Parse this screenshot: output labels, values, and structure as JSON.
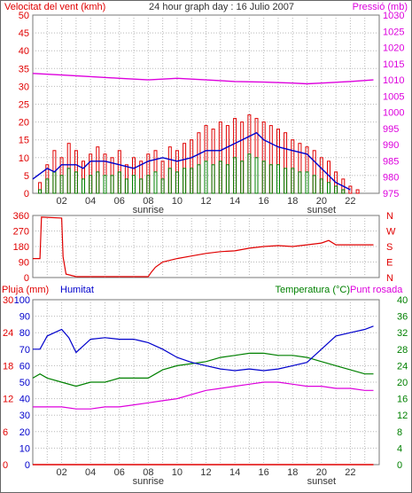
{
  "header": {
    "left_title": "Velocitat del vent (kmh)",
    "center_title": "24 hour graph day : 16 Julio 2007",
    "right_title": "Pressió (mb)"
  },
  "colors": {
    "red": "#e00000",
    "green": "#008000",
    "blue": "#0000cc",
    "magenta": "#dd00dd",
    "grid": "#b8b8b8",
    "text_dark": "#333333"
  },
  "x_axis": {
    "ticks": [
      "02",
      "04",
      "06",
      "08",
      "10",
      "12",
      "14",
      "16",
      "18",
      "20",
      "22"
    ],
    "sunrise_label": "sunrise",
    "sunset_label": "sunset",
    "sunrise_hour": 8,
    "sunset_hour": 20
  },
  "chart_data": [
    {
      "type": "bar",
      "title": "",
      "left_label": "Velocitat del vent (kmh)",
      "right_label": "Pressió (mb)",
      "left_ticks": [
        "0",
        "5",
        "10",
        "15",
        "20",
        "25",
        "30",
        "35",
        "40",
        "45",
        "50"
      ],
      "right_ticks": [
        "975",
        "980",
        "985",
        "990",
        "995",
        "1000",
        "1005",
        "1010",
        "1015",
        "1020",
        "1025",
        "1030"
      ],
      "ylim_left": [
        0,
        50
      ],
      "ylim_right": [
        975,
        1030
      ],
      "xlim": [
        0,
        24
      ],
      "series": [
        {
          "role": "gust",
          "color": "#e00000",
          "x": [
            0.5,
            1,
            1.5,
            2,
            2.5,
            3,
            3.5,
            4,
            4.5,
            5,
            5.5,
            6,
            6.5,
            7,
            7.5,
            8,
            8.5,
            9,
            9.5,
            10,
            10.5,
            11,
            11.5,
            12,
            12.5,
            13,
            13.5,
            14,
            14.5,
            15,
            15.5,
            16,
            16.5,
            17,
            17.5,
            18,
            18.5,
            19,
            19.5,
            20,
            20.5,
            21,
            21.5,
            22,
            22.5
          ],
          "values": [
            3,
            8,
            12,
            10,
            14,
            12,
            9,
            11,
            13,
            11,
            10,
            12,
            8,
            10,
            9,
            11,
            12,
            9,
            13,
            12,
            14,
            15,
            17,
            19,
            18,
            20,
            19,
            21,
            20,
            22,
            21,
            20,
            19,
            18,
            17,
            15,
            14,
            13,
            12,
            10,
            9,
            6,
            4,
            2,
            1
          ]
        },
        {
          "role": "average",
          "color": "#008000",
          "x": [
            0.5,
            1,
            1.5,
            2,
            2.5,
            3,
            3.5,
            4,
            4.5,
            5,
            5.5,
            6,
            6.5,
            7,
            7.5,
            8,
            8.5,
            9,
            9.5,
            10,
            10.5,
            11,
            11.5,
            12,
            12.5,
            13,
            13.5,
            14,
            14.5,
            15,
            15.5,
            16,
            16.5,
            17,
            17.5,
            18,
            18.5,
            19,
            19.5,
            20,
            20.5,
            21,
            21.5,
            22,
            22.5
          ],
          "values": [
            1,
            4,
            6,
            5,
            7,
            6,
            4,
            5,
            6,
            5,
            5,
            6,
            4,
            5,
            4,
            5,
            6,
            4,
            7,
            6,
            7,
            7,
            8,
            9,
            8,
            9,
            8,
            10,
            9,
            11,
            10,
            9,
            8,
            8,
            7,
            7,
            6,
            6,
            5,
            4,
            3,
            2,
            1,
            0,
            0
          ]
        },
        {
          "role": "direction-avg",
          "color": "#0000cc",
          "x": [
            0,
            1,
            1.5,
            2,
            3,
            3.5,
            4,
            5,
            6,
            7,
            8,
            9,
            10,
            11,
            12,
            13,
            14,
            15,
            15.5,
            16,
            17,
            18,
            19,
            20,
            21,
            22
          ],
          "values": [
            4,
            7,
            6,
            8,
            8,
            7,
            9,
            9,
            8,
            7,
            9,
            10,
            9,
            10,
            12,
            12,
            14,
            16,
            17,
            15,
            13,
            12,
            11,
            7,
            3,
            1
          ]
        },
        {
          "role": "pressure",
          "color": "#dd00dd",
          "x": [
            0,
            2,
            4,
            6,
            8,
            10,
            12,
            14,
            16,
            18,
            19,
            20,
            22,
            23.6
          ],
          "values": [
            1012,
            1011.5,
            1011,
            1010.5,
            1010,
            1010.5,
            1010,
            1009.5,
            1009.3,
            1009,
            1008.8,
            1009,
            1009.5,
            1010
          ]
        }
      ]
    },
    {
      "type": "line",
      "title": "",
      "left_ticks": [
        "0",
        "90",
        "180",
        "270",
        "360"
      ],
      "right_ticks": [
        "N",
        "W",
        "S",
        "E",
        "N"
      ],
      "ylim": [
        0,
        360
      ],
      "xlim": [
        0,
        24
      ],
      "series": [
        {
          "role": "wind-direction",
          "color": "#e00000",
          "x": [
            0,
            0.5,
            0.6,
            2,
            2.1,
            2.3,
            3,
            4,
            5,
            6,
            7,
            7.5,
            8,
            8.2,
            8.5,
            9,
            10,
            11,
            12,
            13,
            14,
            15,
            16,
            17,
            18,
            19,
            20,
            20.5,
            21,
            22,
            23.6
          ],
          "values": [
            110,
            110,
            350,
            345,
            120,
            20,
            5,
            5,
            5,
            5,
            5,
            5,
            5,
            30,
            60,
            90,
            110,
            125,
            140,
            150,
            155,
            170,
            180,
            185,
            180,
            190,
            200,
            215,
            190,
            190,
            190
          ]
        }
      ]
    },
    {
      "type": "line",
      "title": "",
      "left_labels": [
        "Pluja (mm)",
        "Humitat"
      ],
      "right_labels": [
        "Temperatura (°C)",
        "Punt rosada"
      ],
      "rain_ticks": [
        "0",
        "6",
        "12",
        "18",
        "24",
        "30"
      ],
      "humidity_ticks": [
        "0",
        "10",
        "20",
        "30",
        "40",
        "50",
        "60",
        "70",
        "80",
        "90",
        "100"
      ],
      "temperature_ticks": [
        "0",
        "4",
        "8",
        "12",
        "16",
        "20",
        "24",
        "28",
        "32",
        "36",
        "40"
      ],
      "ylim_rain": [
        0,
        30
      ],
      "ylim_humidity": [
        0,
        100
      ],
      "ylim_temperature": [
        0,
        40
      ],
      "xlim": [
        0,
        24
      ],
      "series": [
        {
          "role": "humidity",
          "color": "#0000cc",
          "x": [
            0,
            0.5,
            1,
            1.5,
            2,
            2.5,
            3,
            3.5,
            4,
            5,
            6,
            7,
            7.5,
            8,
            9,
            10,
            11,
            12,
            13,
            14,
            15,
            16,
            17,
            18,
            19,
            20,
            21,
            22,
            23,
            23.6
          ],
          "values": [
            70,
            70,
            78,
            80,
            82,
            77,
            68,
            72,
            76,
            77,
            76,
            76,
            75,
            74,
            70,
            65,
            62,
            60,
            58,
            57,
            58,
            57,
            58,
            60,
            62,
            70,
            78,
            80,
            82,
            84
          ]
        },
        {
          "role": "temperature",
          "color": "#008000",
          "x": [
            0,
            0.5,
            1,
            2,
            3,
            4,
            5,
            6,
            7,
            8,
            8.5,
            9,
            10,
            11,
            12,
            13,
            14,
            15,
            16,
            17,
            18,
            19,
            19.5,
            20,
            21,
            22,
            23,
            23.6
          ],
          "values": [
            21,
            22,
            21,
            20,
            19,
            20,
            20,
            21,
            21,
            21,
            22,
            23,
            24,
            24.5,
            25,
            26,
            26.5,
            27,
            27,
            26.5,
            26.5,
            26,
            25.5,
            25,
            24,
            23,
            22,
            22
          ]
        },
        {
          "role": "dew-point",
          "color": "#dd00dd",
          "x": [
            0,
            1,
            2,
            3,
            4,
            5,
            6,
            7,
            8,
            9,
            10,
            11,
            12,
            13,
            14,
            15,
            16,
            17,
            18,
            19,
            20,
            21,
            22,
            23,
            23.6
          ],
          "values": [
            14,
            14,
            14,
            13.5,
            13.5,
            14,
            14,
            14.5,
            15,
            15.5,
            16,
            17,
            18,
            18.5,
            19,
            19.5,
            20,
            20,
            19.5,
            19,
            19,
            18.5,
            18.5,
            18,
            18
          ]
        },
        {
          "role": "rain",
          "color": "#e00000",
          "x": [
            0,
            23.6
          ],
          "values": [
            0,
            0
          ]
        }
      ]
    }
  ]
}
